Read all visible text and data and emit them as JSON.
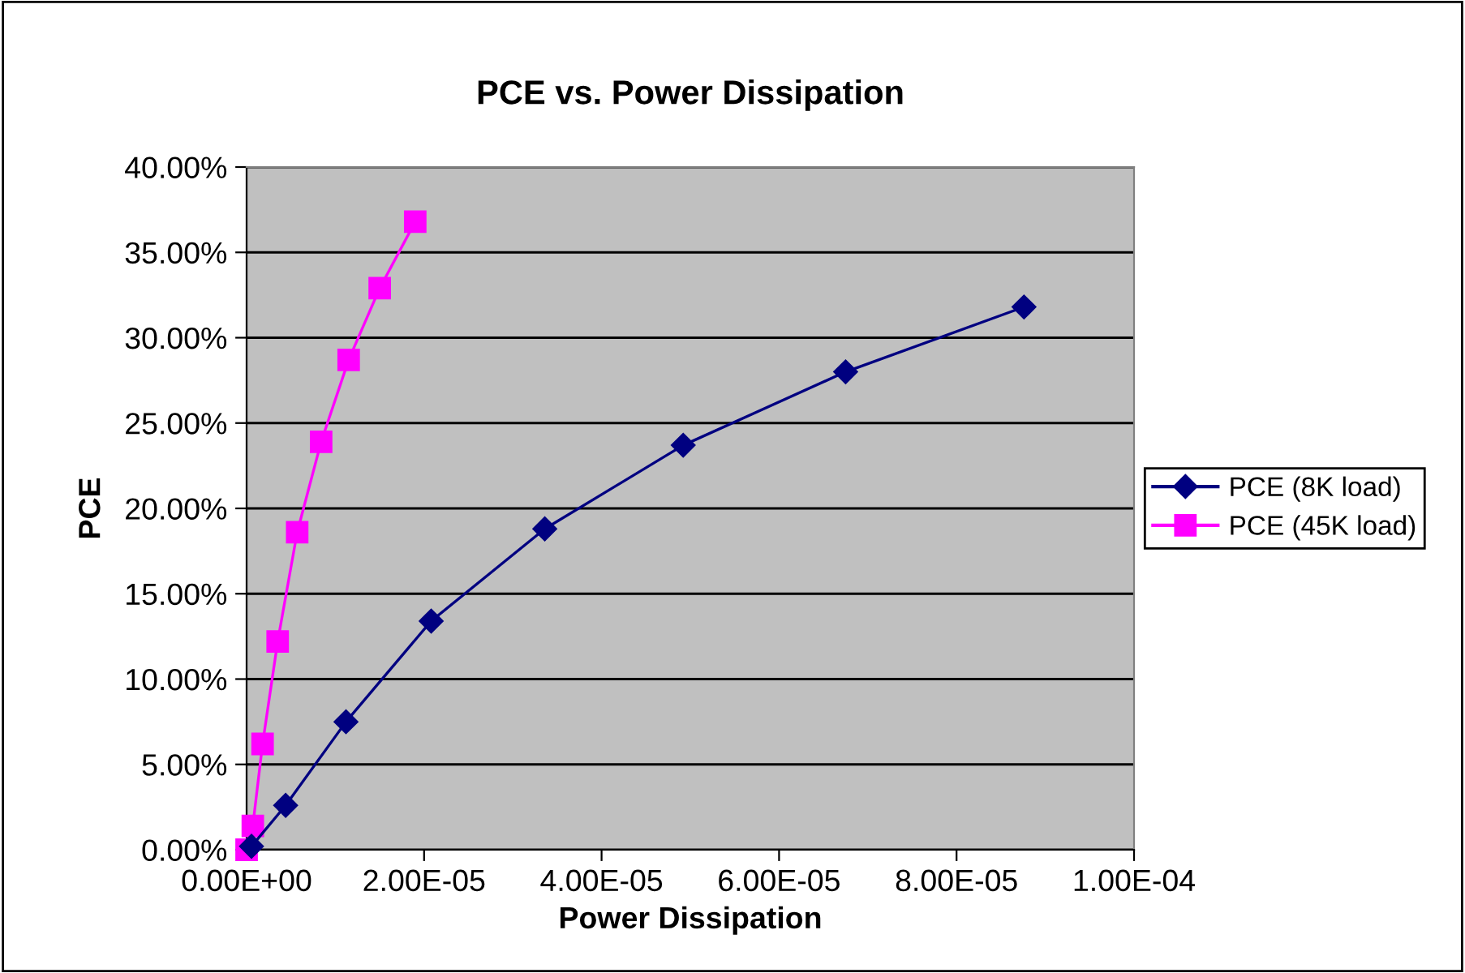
{
  "chart_data": {
    "type": "line",
    "title": "PCE vs. Power Dissipation",
    "xlabel": "Power Dissipation",
    "ylabel": "PCE",
    "series": [
      {
        "name": "PCE (8K load)",
        "color": "#000080",
        "marker": "diamond",
        "x": [
          5.5e-07,
          4.4e-06,
          1.12e-05,
          2.08e-05,
          3.36e-05,
          4.92e-05,
          6.75e-05,
          8.76e-05
        ],
        "values": [
          0.2,
          2.6,
          7.5,
          13.4,
          18.8,
          23.7,
          28.0,
          31.8
        ]
      },
      {
        "name": "PCE (45K load)",
        "color": "#ff00ff",
        "marker": "square",
        "x": [
          0,
          7e-07,
          1.8e-06,
          3.5e-06,
          5.7e-06,
          8.4e-06,
          1.15e-05,
          1.5e-05,
          1.9e-05
        ],
        "values": [
          0,
          1.4,
          6.2,
          12.2,
          18.6,
          23.9,
          28.7,
          32.9,
          36.8
        ]
      }
    ],
    "xlim": [
      0,
      0.0001
    ],
    "xticks": [
      {
        "value": 0,
        "label": "0.00E+00"
      },
      {
        "value": 2e-05,
        "label": "2.00E-05"
      },
      {
        "value": 4e-05,
        "label": "4.00E-05"
      },
      {
        "value": 6e-05,
        "label": "6.00E-05"
      },
      {
        "value": 8e-05,
        "label": "8.00E-05"
      },
      {
        "value": 0.0001,
        "label": "1.00E-04"
      }
    ],
    "ylim": [
      0,
      40
    ],
    "yticks": [
      {
        "value": 0,
        "label": "0.00%"
      },
      {
        "value": 5,
        "label": "5.00%"
      },
      {
        "value": 10,
        "label": "10.00%"
      },
      {
        "value": 15,
        "label": "15.00%"
      },
      {
        "value": 20,
        "label": "20.00%"
      },
      {
        "value": 25,
        "label": "25.00%"
      },
      {
        "value": 30,
        "label": "30.00%"
      },
      {
        "value": 35,
        "label": "35.00%"
      },
      {
        "value": 40,
        "label": "40.00%"
      }
    ],
    "grid": "y",
    "legend": "right",
    "line_style": "solid"
  }
}
